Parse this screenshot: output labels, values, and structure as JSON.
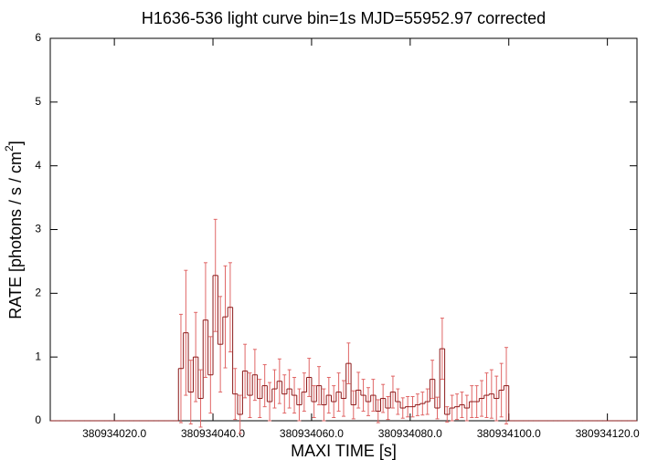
{
  "chart_data": {
    "type": "histogram",
    "title": "H1636-536 light curve bin=1s MJD=55952.97 corrected",
    "x_label": "MAXI TIME [s]",
    "y_label": [
      "RATE [photons / s / cm",
      "2",
      "]"
    ],
    "bins": [
      380934007,
      380934008,
      380934009,
      380934010,
      380934011,
      380934012,
      380934013,
      380934014,
      380934015,
      380934016,
      380934017,
      380934018,
      380934019,
      380934020,
      380934021,
      380934022,
      380934023,
      380934024,
      380934025,
      380934026,
      380934027,
      380934028,
      380934029,
      380934030,
      380934031,
      380934032,
      380934033,
      380934034,
      380934035,
      380934036,
      380934037,
      380934038,
      380934039,
      380934040,
      380934041,
      380934042,
      380934043,
      380934044,
      380934045,
      380934046,
      380934047,
      380934048,
      380934049,
      380934050,
      380934051,
      380934052,
      380934053,
      380934054,
      380934055,
      380934056,
      380934057,
      380934058,
      380934059,
      380934060,
      380934061,
      380934062,
      380934063,
      380934064,
      380934065,
      380934066,
      380934067,
      380934068,
      380934069,
      380934070,
      380934071,
      380934072,
      380934073,
      380934074,
      380934075,
      380934076,
      380934077,
      380934078,
      380934079,
      380934080,
      380934081,
      380934082,
      380934083,
      380934084,
      380934085,
      380934086,
      380934087,
      380934088,
      380934089,
      380934090,
      380934091,
      380934092,
      380934093,
      380934094,
      380934095,
      380934096,
      380934097,
      380934098,
      380934099,
      380934100,
      380934101,
      380934102,
      380934103,
      380934104,
      380934105,
      380934106,
      380934107,
      380934108,
      380934109,
      380934110,
      380934111,
      380934112,
      380934113,
      380934114,
      380934115,
      380934116,
      380934117,
      380934118,
      380934119,
      380934120,
      380934121,
      380934122,
      380934123,
      380934124,
      380934125,
      380934126
    ],
    "values": [
      0,
      0,
      0,
      0,
      0,
      0,
      0,
      0,
      0,
      0,
      0,
      0,
      0,
      0,
      0,
      0,
      0,
      0,
      0,
      0,
      0,
      0,
      0,
      0,
      0,
      0,
      0.82,
      1.38,
      0.45,
      1.0,
      0.35,
      1.58,
      0.72,
      2.28,
      1.2,
      1.63,
      1.78,
      0.42,
      0.1,
      0.78,
      0.4,
      0.72,
      0.35,
      0.55,
      0.3,
      0.5,
      0.62,
      0.42,
      0.5,
      0.4,
      0.25,
      0.45,
      0.68,
      0.3,
      0.55,
      0.25,
      0.4,
      0.3,
      0.45,
      0.35,
      0.9,
      0.25,
      0.48,
      0.4,
      0.3,
      0.4,
      0.15,
      0.35,
      0.2,
      0.45,
      0.3,
      0.2,
      0.22,
      0.22,
      0.25,
      0.27,
      0.3,
      0.65,
      0.2,
      1.13,
      0.1,
      0.2,
      0.22,
      0.25,
      0.2,
      0.3,
      0.3,
      0.35,
      0.4,
      0.42,
      0.35,
      0.48,
      0.55,
      0,
      0,
      0,
      0,
      0,
      0,
      0,
      0,
      0,
      0,
      0,
      0,
      0,
      0,
      0,
      0,
      0,
      0,
      0,
      0,
      0,
      0,
      0,
      0,
      0,
      0
    ],
    "errors": [
      0,
      0,
      0,
      0,
      0,
      0,
      0,
      0,
      0,
      0,
      0,
      0,
      0,
      0,
      0,
      0,
      0,
      0,
      0,
      0,
      0,
      0,
      0,
      0,
      0,
      0,
      0.85,
      0.98,
      0.5,
      0.7,
      0.45,
      0.9,
      0.6,
      0.88,
      0.75,
      0.8,
      0.7,
      0.4,
      0.3,
      0.42,
      0.35,
      0.4,
      0.3,
      0.33,
      0.3,
      0.3,
      0.35,
      0.3,
      0.3,
      0.28,
      0.25,
      0.3,
      0.3,
      0.25,
      0.3,
      0.25,
      0.28,
      0.25,
      0.3,
      0.28,
      0.32,
      0.22,
      0.28,
      0.25,
      0.22,
      0.25,
      0.18,
      0.22,
      0.18,
      0.25,
      0.2,
      0.16,
      0.16,
      0.16,
      0.17,
      0.18,
      0.2,
      0.3,
      0.17,
      0.48,
      0.12,
      0.2,
      0.2,
      0.2,
      0.2,
      0.25,
      0.25,
      0.28,
      0.35,
      0.38,
      0.35,
      0.42,
      0.6,
      0,
      0,
      0,
      0,
      0,
      0,
      0,
      0,
      0,
      0,
      0,
      0,
      0,
      0,
      0,
      0,
      0,
      0,
      0,
      0,
      0,
      0,
      0,
      0,
      0,
      0
    ],
    "color": "#8b1a1a",
    "error_color": "#e06666",
    "xlim": [
      380934007,
      380934126
    ],
    "xticks": [
      {
        "value": 380934020,
        "label": "380934020.0"
      },
      {
        "value": 380934040,
        "label": "380934040.0"
      },
      {
        "value": 380934060,
        "label": "380934060.0"
      },
      {
        "value": 380934080,
        "label": "380934080.0"
      },
      {
        "value": 380934100,
        "label": "380934100.0"
      },
      {
        "value": 380934120,
        "label": "380934120.0"
      }
    ],
    "ylim": [
      0,
      6
    ],
    "yticks": [
      0,
      1,
      2,
      3,
      4,
      5,
      6
    ],
    "grid": false
  }
}
